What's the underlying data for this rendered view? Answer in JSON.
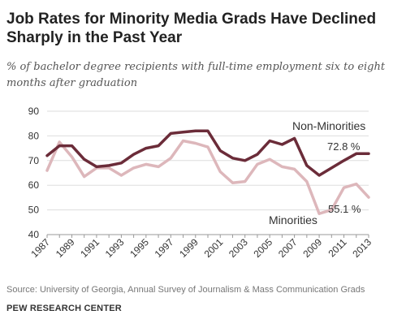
{
  "title": "Job Rates for Minority Media Grads Have Declined Sharply in the Past Year",
  "subtitle": "% of bachelor degree recipients with full-time employment six to eight months after graduation",
  "source": "Source: University of Georgia, Annual Survey of Journalism & Mass Communication Grads",
  "organization": "PEW RESEARCH CENTER",
  "colors": {
    "non_minorities": "#6b2c39",
    "minorities": "#ddb7bb",
    "grid": "#dddddd",
    "axis": "#999999",
    "text": "#333333"
  },
  "chart_data": {
    "type": "line",
    "title": "Job Rates for Minority Media Grads Have Declined Sharply in the Past Year",
    "xlabel": "",
    "ylabel": "",
    "x": [
      1987,
      1988,
      1989,
      1990,
      1991,
      1992,
      1993,
      1994,
      1995,
      1996,
      1997,
      1998,
      1999,
      2000,
      2001,
      2002,
      2003,
      2004,
      2005,
      2006,
      2007,
      2008,
      2009,
      2010,
      2011,
      2012,
      2013
    ],
    "x_tick_labels": [
      "1987",
      "1989",
      "1991",
      "1993",
      "1995",
      "1997",
      "1999",
      "2001",
      "2003",
      "2005",
      "2007",
      "2009",
      "2011",
      "2013"
    ],
    "ylim": [
      40,
      90
    ],
    "y_ticks": [
      "40",
      "50",
      "60",
      "70",
      "80",
      "90"
    ],
    "grid": true,
    "series": [
      {
        "name": "Non-Minorities",
        "values": [
          72,
          76,
          76,
          70.5,
          67.5,
          68,
          69,
          72.5,
          75,
          76,
          81,
          81.5,
          82,
          82,
          74,
          71,
          70,
          72.5,
          78,
          76.5,
          79,
          68,
          64,
          67,
          70,
          72.8,
          72.8
        ]
      },
      {
        "name": "Minorities",
        "values": [
          66,
          77.5,
          71.5,
          63.5,
          67,
          67,
          64,
          67,
          68.5,
          67.5,
          71,
          78,
          77,
          75.5,
          65.5,
          61,
          61.5,
          68.5,
          70.5,
          67.5,
          66.5,
          61.5,
          48.5,
          50,
          59,
          60.5,
          55.1
        ]
      }
    ],
    "annotations": {
      "non_minorities_last": "72.8 %",
      "minorities_last": "55.1 %"
    }
  }
}
